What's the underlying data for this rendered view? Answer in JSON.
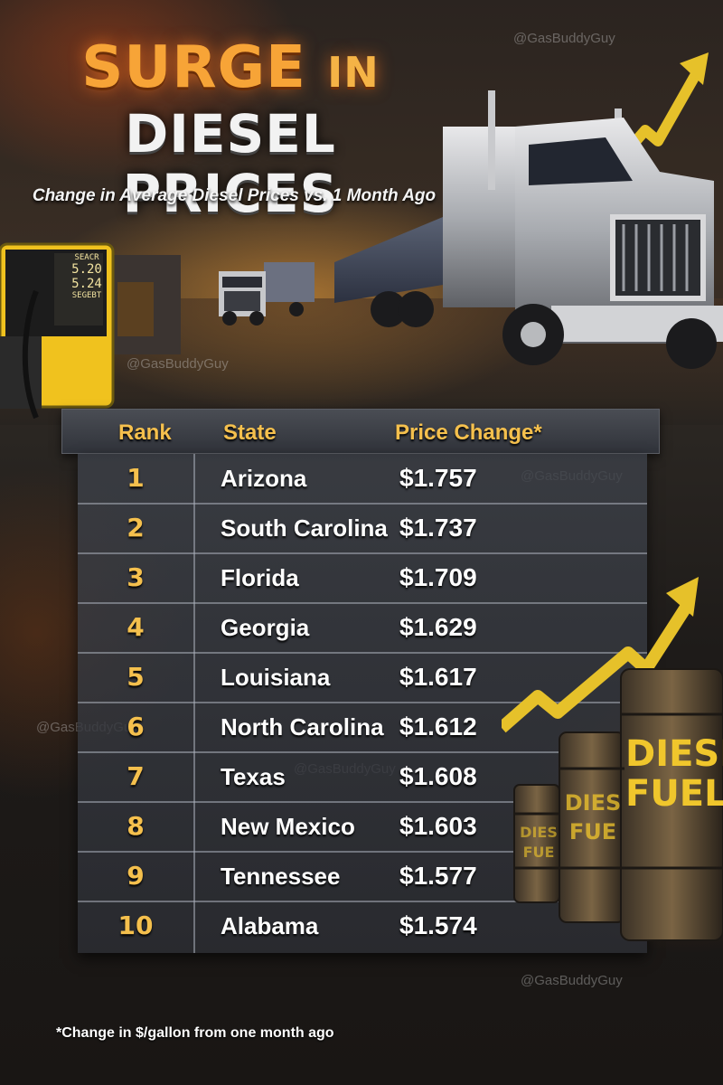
{
  "title": {
    "line1_main": "SURGE",
    "line1_small": "IN",
    "line2": "DIESEL PRICES"
  },
  "subtitle": "Change in Average Diesel Prices vs. 1 Month Ago",
  "watermark": "@GasBuddyGuy",
  "pump_display": {
    "top": "SEACR",
    "v1": "5.20",
    "v2": "5.24",
    "bottom": "SEGEBT"
  },
  "table": {
    "headers": {
      "rank": "Rank",
      "state": "State",
      "price": "Price Change*"
    },
    "rows": [
      {
        "rank": "1",
        "state": "Arizona",
        "price": "$1.757"
      },
      {
        "rank": "2",
        "state": "South Carolina",
        "price": "$1.737"
      },
      {
        "rank": "3",
        "state": "Florida",
        "price": "$1.709"
      },
      {
        "rank": "4",
        "state": "Georgia",
        "price": "$1.629"
      },
      {
        "rank": "5",
        "state": "Louisiana",
        "price": "$1.617"
      },
      {
        "rank": "6",
        "state": "North Carolina",
        "price": "$1.612"
      },
      {
        "rank": "7",
        "state": "Texas",
        "price": "$1.608"
      },
      {
        "rank": "8",
        "state": "New Mexico",
        "price": "$1.603"
      },
      {
        "rank": "9",
        "state": "Tennessee",
        "price": "$1.577"
      },
      {
        "rank": "10",
        "state": "Alabama",
        "price": "$1.574"
      }
    ]
  },
  "barrels": {
    "large_1": "DIESEL",
    "large_2": "FUEL",
    "mid": "DIES FUE",
    "small": "DIES FUE"
  },
  "footnote": "*Change in $/gallon from one month ago",
  "colors": {
    "accent_gold": "#f5c04d",
    "title_orange": "#f7a437",
    "arrow_yellow": "#e6c12a"
  }
}
